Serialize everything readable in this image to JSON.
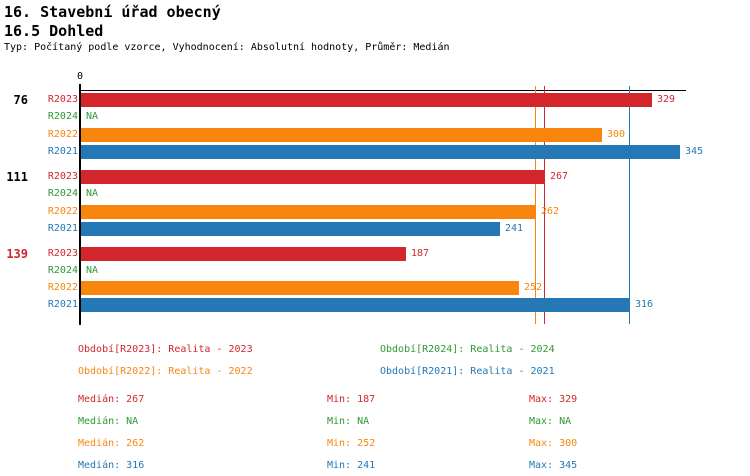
{
  "page": {
    "title_line1": "16. Stavební úřad obecný",
    "title_line2": "16.5 Dohled",
    "meta_line": "Typ: Počítaný podle vzorce, Vyhodnocení: Absolutní hodnoty, Průměr: Medián"
  },
  "axis": {
    "zero_label": "0"
  },
  "series": [
    {
      "id": "R2023",
      "name": "Realita - 2023",
      "color": "#d2262c"
    },
    {
      "id": "R2024",
      "name": "Realita - 2024",
      "color": "#2e9932"
    },
    {
      "id": "R2022",
      "name": "Realita - 2022",
      "color": "#f8860e"
    },
    {
      "id": "R2021",
      "name": "Realita - 2021",
      "color": "#2378b5"
    }
  ],
  "chart_data": {
    "type": "bar",
    "orientation": "horizontal",
    "xlim": [
      0,
      349
    ],
    "row_order": [
      "R2023",
      "R2024",
      "R2022",
      "R2021"
    ],
    "na_text": "NA",
    "groups": [
      {
        "label": "76",
        "label_color": "#000000",
        "values": {
          "R2023": 329,
          "R2024": null,
          "R2022": 300,
          "R2021": 345
        }
      },
      {
        "label": "111",
        "label_color": "#000000",
        "values": {
          "R2023": 267,
          "R2024": null,
          "R2022": 262,
          "R2021": 241
        }
      },
      {
        "label": "139",
        "label_color": "#d2262c",
        "values": {
          "R2023": 187,
          "R2024": null,
          "R2022": 252,
          "R2021": 316
        }
      }
    ],
    "median_lines": {
      "R2023": 267,
      "R2024": null,
      "R2022": 262,
      "R2021": 316
    }
  },
  "legend": {
    "items": [
      {
        "text": "Období[R2023]: Realita - 2023",
        "color": "#d2262c"
      },
      {
        "text": "Období[R2024]: Realita - 2024",
        "color": "#2e9932"
      },
      {
        "text": "Období[R2022]: Realita - 2022",
        "color": "#f8860e"
      },
      {
        "text": "Období[R2021]: Realita - 2021",
        "color": "#2378b5"
      }
    ]
  },
  "stats": {
    "rows": [
      {
        "median": "Medián: 267",
        "min": "Min: 187",
        "max": "Max: 329",
        "color": "#d2262c"
      },
      {
        "median": "Medián: NA",
        "min": "Min: NA",
        "max": "Max: NA",
        "color": "#2e9932"
      },
      {
        "median": "Medián: 262",
        "min": "Min: 252",
        "max": "Max: 300",
        "color": "#f8860e"
      },
      {
        "median": "Medián: 316",
        "min": "Min: 241",
        "max": "Max: 345",
        "color": "#2378b5"
      }
    ]
  }
}
